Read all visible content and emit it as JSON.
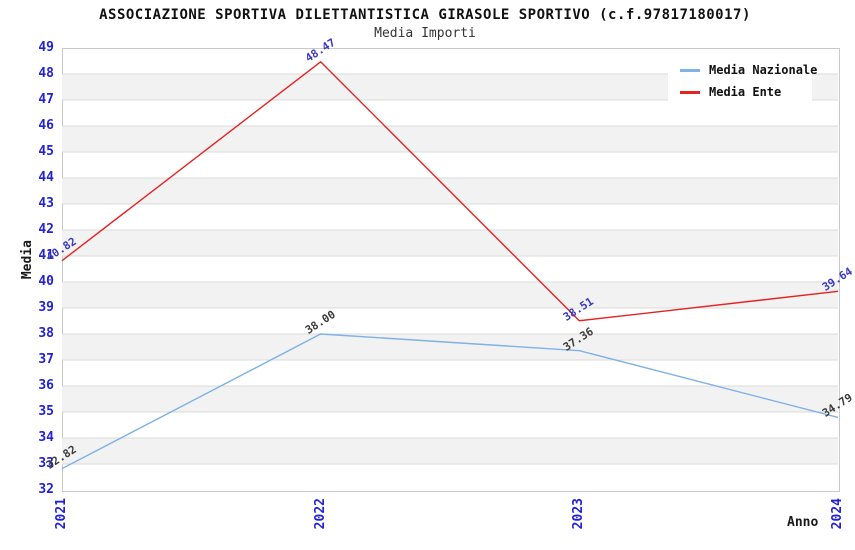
{
  "header": {
    "title": "ASSOCIAZIONE SPORTIVA DILETTANTISTICA GIRASOLE SPORTIVO (c.f.97817180017)",
    "subtitle": "Media Importi"
  },
  "chart_data": {
    "type": "line",
    "x": [
      "2021",
      "2022",
      "2023",
      "2024"
    ],
    "series": [
      {
        "name": "Media Nazionale",
        "values": [
          32.82,
          38.0,
          37.36,
          34.79
        ],
        "point_labels": [
          "32.82",
          "38.00",
          "37.36",
          "34.79"
        ],
        "color": "#7FB2E5",
        "point_label_color": "#3C3C3C"
      },
      {
        "name": "Media Ente",
        "values": [
          40.82,
          48.47,
          38.51,
          39.64
        ],
        "point_labels": [
          "40.82",
          "48.47",
          "38.51",
          "39.64"
        ],
        "color": "#E62222",
        "point_label_color": "#3A3AC0"
      }
    ],
    "xlabel": "Anno",
    "ylabel": "Media",
    "ylim": [
      32,
      49
    ],
    "ytick_step": 1,
    "grid": "horizontal-bands",
    "legend_position": "top-right",
    "colors": {
      "tick_label": "#2121D6",
      "band_gray": "#F2F2F2",
      "grid_line": "#DBDBDB",
      "plot_border": "#C9C9C9"
    }
  }
}
